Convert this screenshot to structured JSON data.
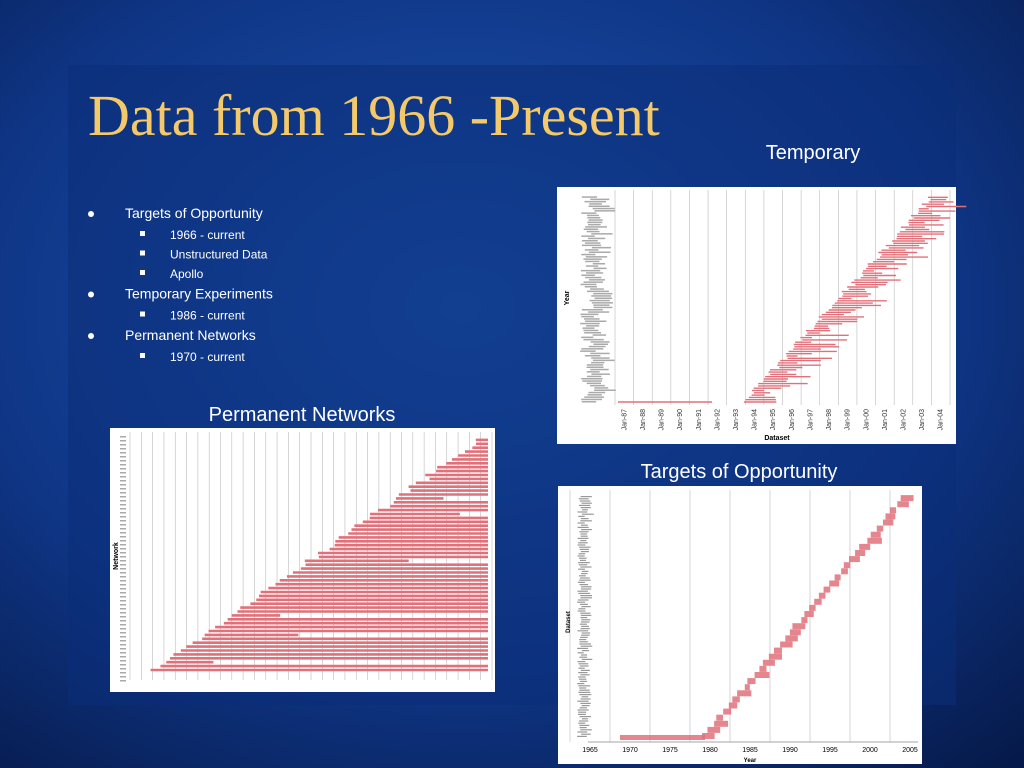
{
  "slide": {
    "title": "Data from 1966 -Present",
    "bullets": [
      {
        "text": "Targets of Opportunity",
        "sub": [
          "1966 - current",
          "Unstructured Data",
          "Apollo"
        ]
      },
      {
        "text": "Temporary Experiments",
        "sub": [
          "1986 - current"
        ]
      },
      {
        "text": "Permanent Networks",
        "sub": [
          "1970 - current"
        ]
      }
    ]
  },
  "figures": {
    "temporary": {
      "caption": "Temporary",
      "y_label": "Year",
      "x_label": "Dataset",
      "x_ticks": [
        "Jan-87",
        "Jan-88",
        "Jan-89",
        "Jan-90",
        "Jan-91",
        "Jan-92",
        "Jan-93",
        "Jan-94",
        "Jan-95",
        "Jan-96",
        "Jan-97",
        "Jan-98",
        "Jan-99",
        "Jan-00",
        "Jan-01",
        "Jan-02",
        "Jan-03",
        "Jan-04"
      ]
    },
    "permanent": {
      "caption": "Permanent Networks",
      "y_label": "Network"
    },
    "targets": {
      "caption": "Targets of Opportunity",
      "y_label": "Dataset",
      "x_label": "Year",
      "x_ticks": [
        "1965",
        "1970",
        "1975",
        "1980",
        "1985",
        "1990",
        "1995",
        "2000",
        "2005"
      ]
    }
  }
}
